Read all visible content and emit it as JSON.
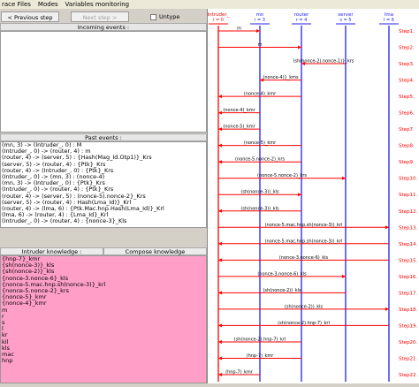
{
  "menu": {
    "items": [
      "race Files",
      "Modes",
      "Variables monitoring"
    ]
  },
  "toolbar": {
    "prev_label": "< Previous step",
    "next_label": "Next step >",
    "untype_label": "Untype"
  },
  "incoming": {
    "title": "Incoming events :"
  },
  "past": {
    "title": "Past events :",
    "events": [
      "(mn, 3) -> (Intruder_, 0) : M",
      "(Intruder_, 0) -> (router, 4) : m",
      "(router, 4) -> (server, 5) : {Hash(Mag_Id.Otp1)}_Krs",
      "(server, 5) -> (router, 4) : {Ptk}_Krs",
      "(router, 4) -> (Intruder_, 0) : {Ptk}_Krs",
      "(Intruder_, 0) -> (mn, 3) : (nonce-4)",
      "(mn, 3) -> (Intruder_, 0) : {Ptk}_Krs",
      "(Intruder_, 0) -> (router, 4) : {Ptk}_Krs",
      "(router, 4) -> (server, 5) : (nonce-5).nonce-2}_Krs",
      "(server, 5) -> (router, 4) : Hash(Lma_Id)}_Krl",
      "(router, 4) -> (lma, 6) : {Ptk.Mac.hnp.Hash(Lma_Id)}_Krl",
      "(lma, 6) -> (router, 4) : {Lma_Id}_Krl",
      "(Intruder_, 0) -> (router, 4) : {nonce-3}_Kls"
    ]
  },
  "knowledge": {
    "tab1": "Intruder knowledge :",
    "tab2": "Compose knowledge",
    "items": [
      "{hnp-7}_kmr",
      "{sh(nonce-3)}_kls",
      "{sh(nonce-2)}_kls",
      "{nonce-3.nonce-6}_kls",
      "{nonce-5.mac.hnp.sh(nonce-3)}_krl",
      "{nonce-5.nonce-2}_krs",
      "{nonce-5}_kmr",
      "{nonce-4}_kmr",
      "m",
      "r",
      "s",
      "l",
      "kr",
      "kil",
      "kls",
      "mac",
      "hnp"
    ]
  },
  "sequence": {
    "actors": [
      {
        "title": "Intruder_",
        "sub": "i = 0"
      },
      {
        "title": "mn",
        "sub": "i = 3"
      },
      {
        "title": "router",
        "sub": "r = 4"
      },
      {
        "title": "server",
        "sub": "s = 5"
      },
      {
        "title": "lma",
        "sub": "l = 6"
      }
    ],
    "messages": [
      {
        "step": "Step1.",
        "from": 0,
        "to": 1,
        "label": "m"
      },
      {
        "step": "Step2.",
        "from": 0,
        "to": 2,
        "label": "m"
      },
      {
        "step": "Step3.",
        "from": 3,
        "to": 2,
        "label": "(sh(nonce-2).nonce-1)}_krs"
      },
      {
        "step": "Step4.",
        "from": 2,
        "to": 1,
        "label": "(nonce-4)}_kms"
      },
      {
        "step": "Step5.",
        "from": 2,
        "to": 0,
        "label": "(nonce-4)_kmr"
      },
      {
        "step": "Step6.",
        "from": 1,
        "to": 0,
        "label": "(nonce-4)_kmr"
      },
      {
        "step": "Step7.",
        "from": 1,
        "to": 0,
        "label": "(nonce-5)_kmr"
      },
      {
        "step": "Step8.",
        "from": 2,
        "to": 0,
        "label": "(nonce-5)_kmr"
      },
      {
        "step": "Step9.",
        "from": 2,
        "to": 0,
        "label": "(nonce-5.nonce-2)_krs"
      },
      {
        "step": "Step10.",
        "from": 0,
        "to": 3,
        "label": "(nonce-5.nonce-2)_krs"
      },
      {
        "step": "Step11.",
        "from": 0,
        "to": 2,
        "label": "(sh(nonce-3))_kls"
      },
      {
        "step": "Step12.",
        "from": 2,
        "to": 0,
        "label": "(sh(nonce-3))_kls"
      },
      {
        "step": "Step13.",
        "from": 0,
        "to": 4,
        "label": "(nonce-5.mac.hnp.sh(nonce-3))_krl"
      },
      {
        "step": "Step14.",
        "from": 4,
        "to": 0,
        "label": "(nonce-5.mac.hnp.sh(nonce-3))_krl"
      },
      {
        "step": "Step15.",
        "from": 4,
        "to": 0,
        "label": "(nonce-3.nonce-6)_kls"
      },
      {
        "step": "Step16.",
        "from": 0,
        "to": 3,
        "label": "(nonce-3.nonce-6)_kls"
      },
      {
        "step": "Step17.",
        "from": 3,
        "to": 0,
        "label": "(sh(nonce-2))_kls"
      },
      {
        "step": "Step18.",
        "from": 0,
        "to": 4,
        "label": "(sh(nonce-2))_kls"
      },
      {
        "step": "Step19.",
        "from": 4,
        "to": 0,
        "label": "(sh(nonce-2).hnp-7)_krl"
      },
      {
        "step": "Step20.",
        "from": 2,
        "to": 0,
        "label": "(sh(nonce-2).hnp-7)_krl"
      },
      {
        "step": "Step21.",
        "from": 2,
        "to": 0,
        "label": "(hnp-7)_kmr"
      },
      {
        "step": "Step22.",
        "from": 1,
        "to": 0,
        "label": "(hnp-7)_kmr"
      }
    ]
  },
  "colors": {
    "actor": "#ff0000",
    "lifeline": "#2222ee",
    "intruder_line": "#ff0000",
    "arrow": "#ff0000",
    "step": "#ff0000"
  }
}
